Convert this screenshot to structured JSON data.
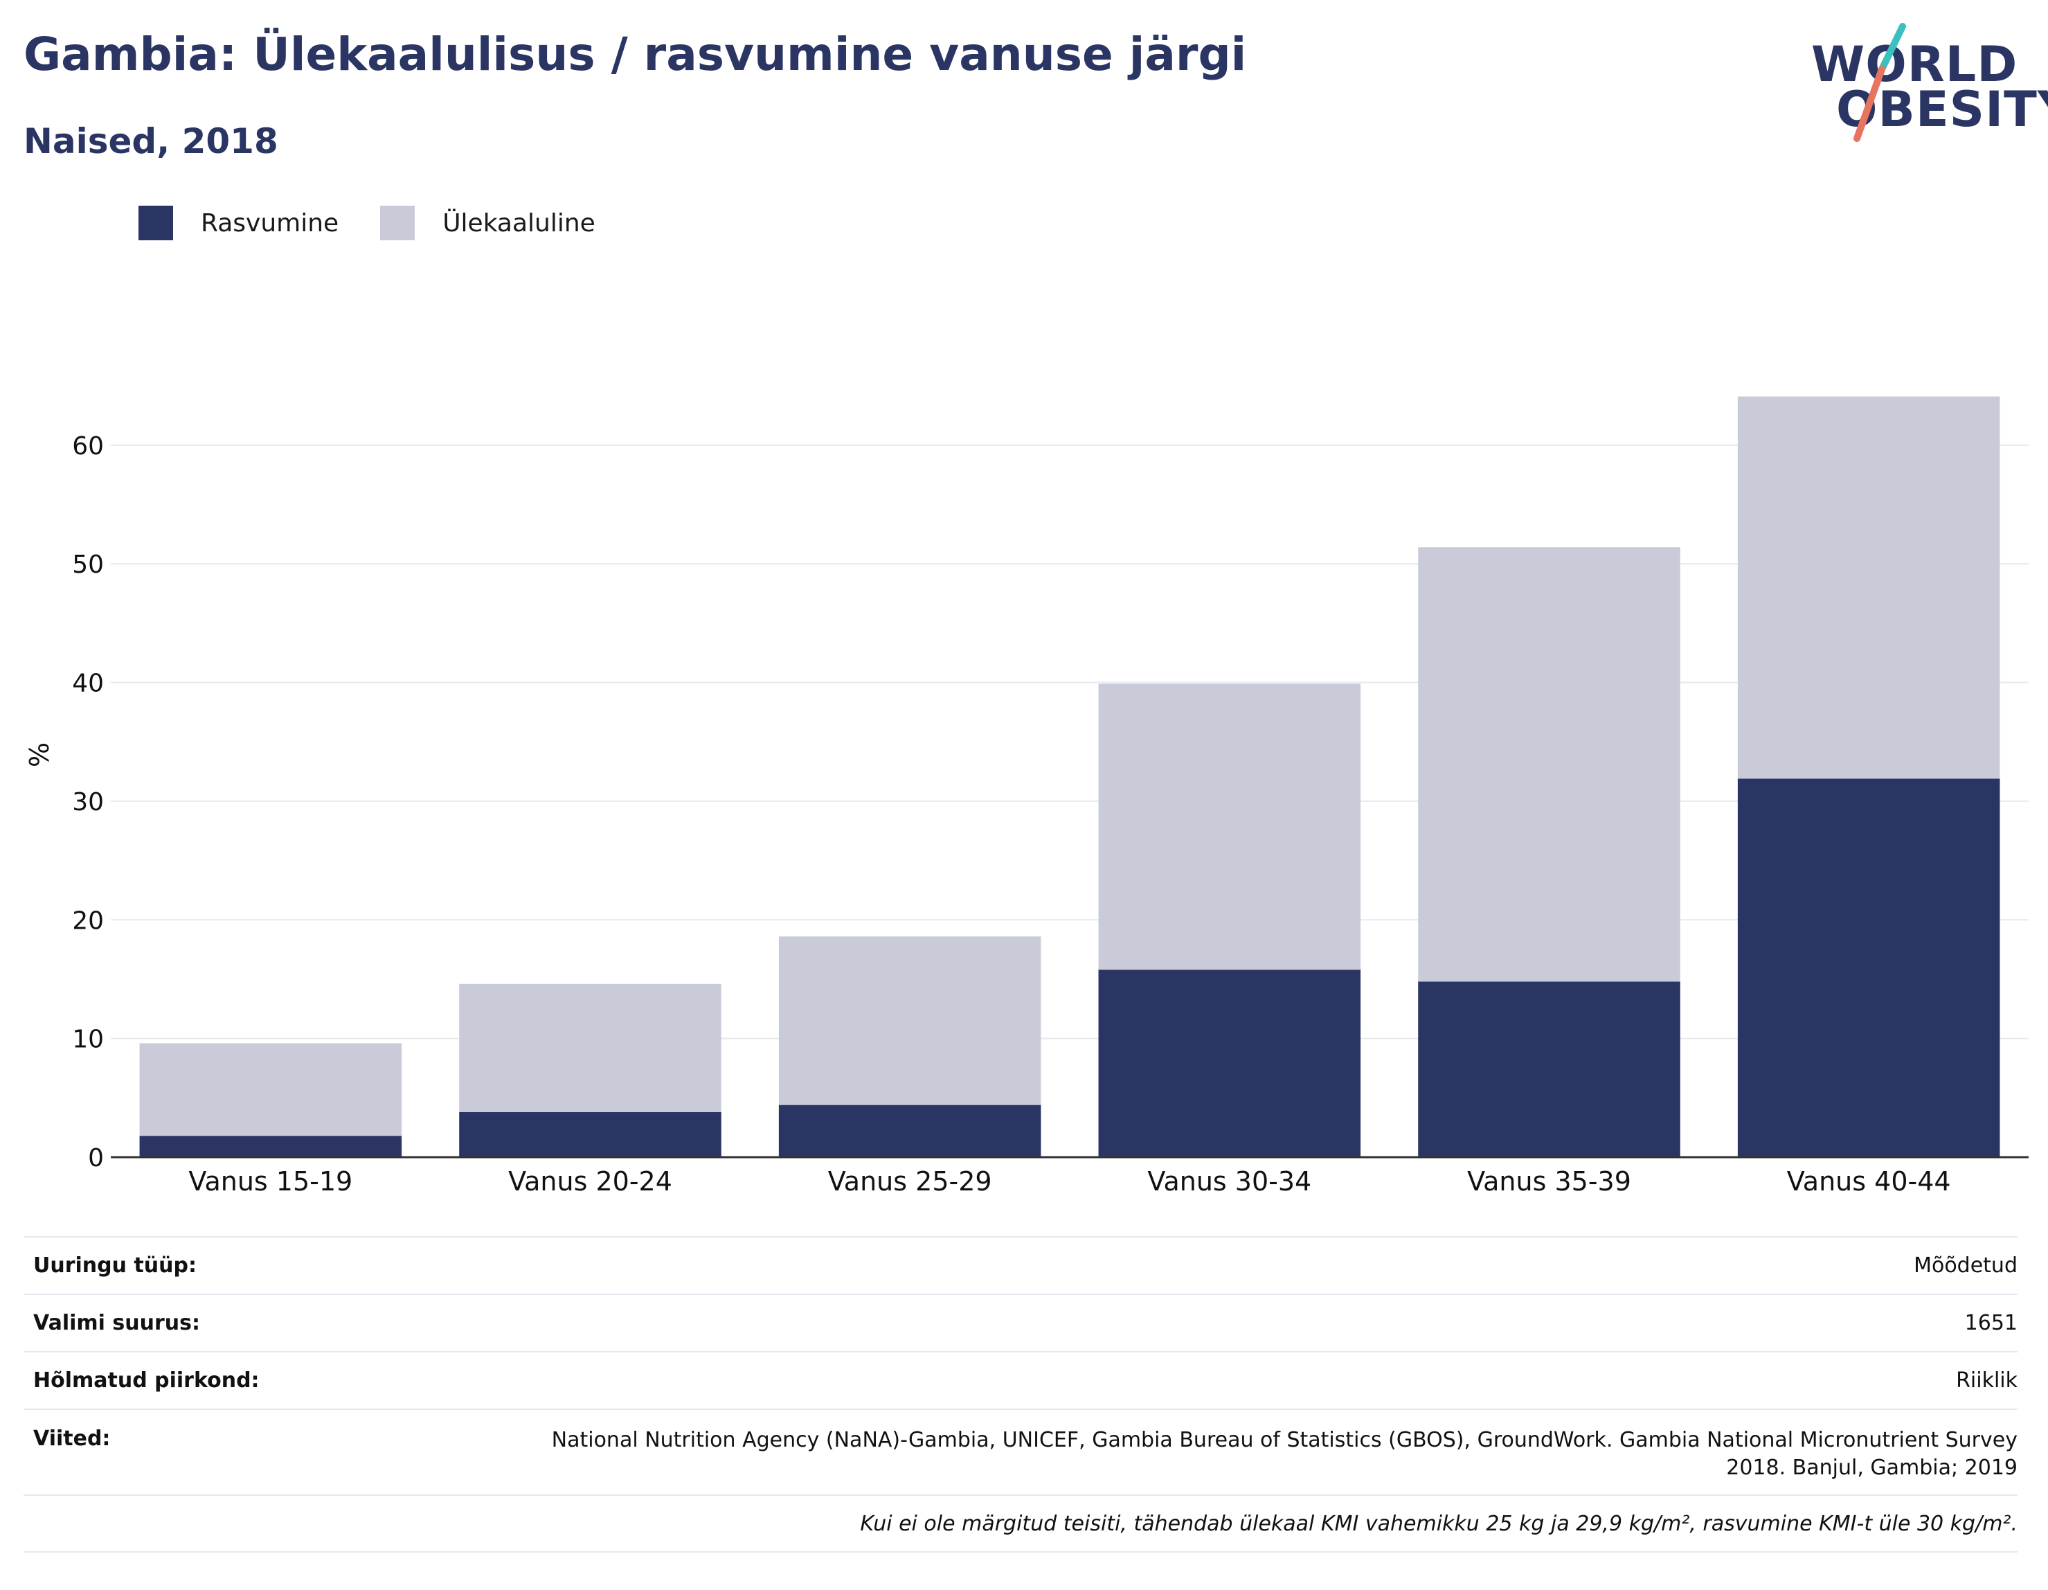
{
  "header": {
    "title": "Gambia: Ülekaalulisus / rasvumine vanuse järgi",
    "subtitle": "Naised, 2018"
  },
  "logo": {
    "line1": "WORLD",
    "line2": "OBESITY",
    "accent_teal": "#3bbfbf",
    "accent_coral": "#e8735f"
  },
  "legend": [
    {
      "label": "Rasvumine",
      "color": "#2a3563"
    },
    {
      "label": "Ülekaaluline",
      "color": "#c9ccd8"
    }
  ],
  "chart_data": {
    "type": "bar",
    "stacked": true,
    "categories": [
      "Vanus 15-19",
      "Vanus 20-24",
      "Vanus 25-29",
      "Vanus 30-34",
      "Vanus 35-39",
      "Vanus 40-44"
    ],
    "series": [
      {
        "name": "Rasvumine",
        "values": [
          1.8,
          3.8,
          4.4,
          15.8,
          14.8,
          31.9
        ]
      },
      {
        "name": "Ülekaaluline",
        "values": [
          7.8,
          10.8,
          14.2,
          24.1,
          36.6,
          32.2
        ]
      }
    ],
    "ylabel": "%",
    "xlabel": "",
    "ylim": [
      0,
      66
    ],
    "yticks": [
      0,
      10,
      20,
      30,
      40,
      50,
      60
    ],
    "grid": true,
    "legend_position": "top-left"
  },
  "info": [
    {
      "key": "Uuringu tüüp:",
      "value": "Mõõdetud"
    },
    {
      "key": "Valimi suurus:",
      "value": "1651"
    },
    {
      "key": "Hõlmatud piirkond:",
      "value": "Riiklik"
    },
    {
      "key": "Viited:",
      "value": "National Nutrition Agency (NaNA)-Gambia, UNICEF, Gambia Bureau of Statistics (GBOS), GroundWork. Gambia National Micronutrient Survey 2018. Banjul, Gambia; 2019"
    }
  ],
  "footnote": "Kui ei ole märgitud teisiti, tähendab ülekaal KMI vahemikku 25 kg ja 29,9 kg/m², rasvumine KMI-t üle 30 kg/m²."
}
